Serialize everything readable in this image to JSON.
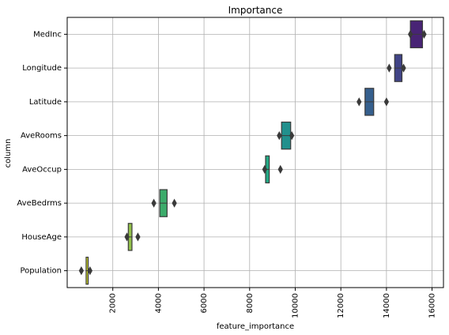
{
  "chart_data": {
    "type": "boxen",
    "title": "Importance",
    "xlabel": "feature_importance",
    "ylabel": "column",
    "xlim": [
      0,
      16500
    ],
    "x_ticks": [
      2000,
      4000,
      6000,
      8000,
      10000,
      12000,
      14000,
      16000
    ],
    "x_tick_labels": [
      "2000",
      "4000",
      "6000",
      "8000",
      "10000",
      "12000",
      "14000",
      "16000"
    ],
    "grid": true,
    "categories": [
      "MedInc",
      "Longitude",
      "Latitude",
      "AveRooms",
      "AveOccup",
      "AveBedrms",
      "HouseAge",
      "Population"
    ],
    "series": [
      {
        "category": "MedInc",
        "box_low": 15050,
        "box_high": 15580,
        "median": 15300,
        "outliers": [
          15050,
          15650
        ],
        "color": "#482475"
      },
      {
        "category": "Longitude",
        "box_low": 14360,
        "box_high": 14680,
        "median": 14500,
        "outliers": [
          14120,
          14750
        ],
        "color": "#414487"
      },
      {
        "category": "Latitude",
        "box_low": 13060,
        "box_high": 13440,
        "median": 13250,
        "outliers": [
          12800,
          14000
        ],
        "color": "#355f8d"
      },
      {
        "category": "AveRooms",
        "box_low": 9400,
        "box_high": 9800,
        "median": 9600,
        "outliers": [
          9300,
          9850
        ],
        "color": "#21908d"
      },
      {
        "category": "AveOccup",
        "box_low": 8700,
        "box_high": 8860,
        "median": 8780,
        "outliers": [
          8660,
          9350
        ],
        "color": "#22a884"
      },
      {
        "category": "AveBedrms",
        "box_low": 4060,
        "box_high": 4380,
        "median": 4200,
        "outliers": [
          3800,
          4700
        ],
        "color": "#3bab6a"
      },
      {
        "category": "HouseAge",
        "box_low": 2680,
        "box_high": 2840,
        "median": 2750,
        "outliers": [
          2620,
          3100
        ],
        "color": "#93c14b"
      },
      {
        "category": "Population",
        "box_low": 830,
        "box_high": 920,
        "median": 870,
        "outliers": [
          620,
          1000
        ],
        "color": "#c8d12a"
      }
    ]
  }
}
